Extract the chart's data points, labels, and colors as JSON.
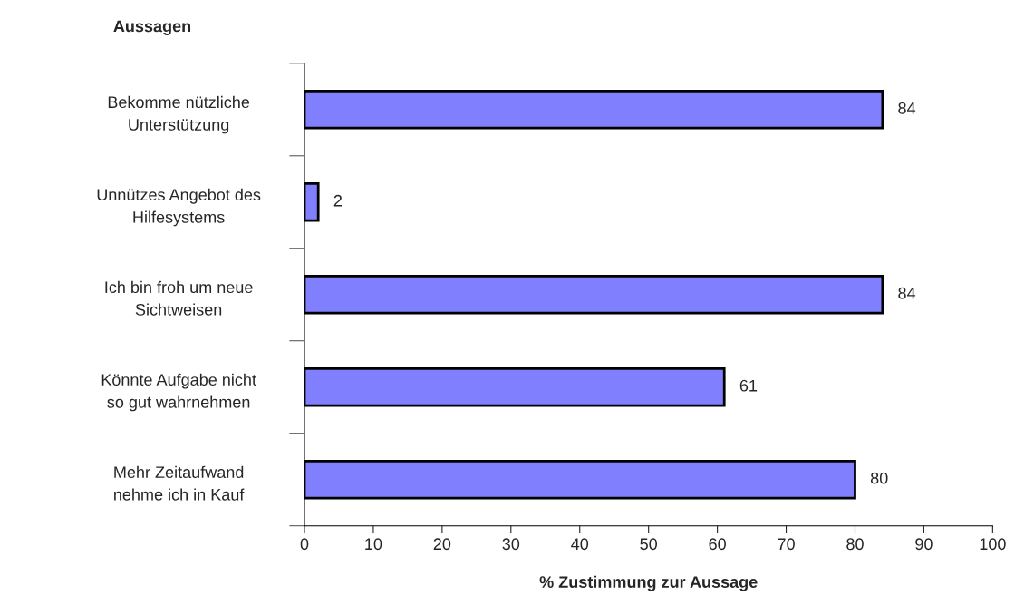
{
  "chart_data": {
    "type": "bar",
    "orientation": "horizontal",
    "ylabel": "Aussagen",
    "xlabel": "% Zustimmung zur Aussage",
    "categories": [
      "Bekomme nützliche\nUnterstützung",
      "Unnützes Angebot des\nHilfesystems",
      "Ich bin froh um neue\nSichtweisen",
      "Könnte Aufgabe nicht\nso gut wahrnehmen",
      "Mehr Zeitaufwand\nnehme ich in Kauf"
    ],
    "values": [
      84,
      2,
      84,
      61,
      80
    ],
    "color": "#8080ff",
    "xlim": [
      0,
      100
    ],
    "xticks": [
      0,
      10,
      20,
      30,
      40,
      50,
      60,
      70,
      80,
      90,
      100
    ],
    "grid": false,
    "data_labels": true
  }
}
